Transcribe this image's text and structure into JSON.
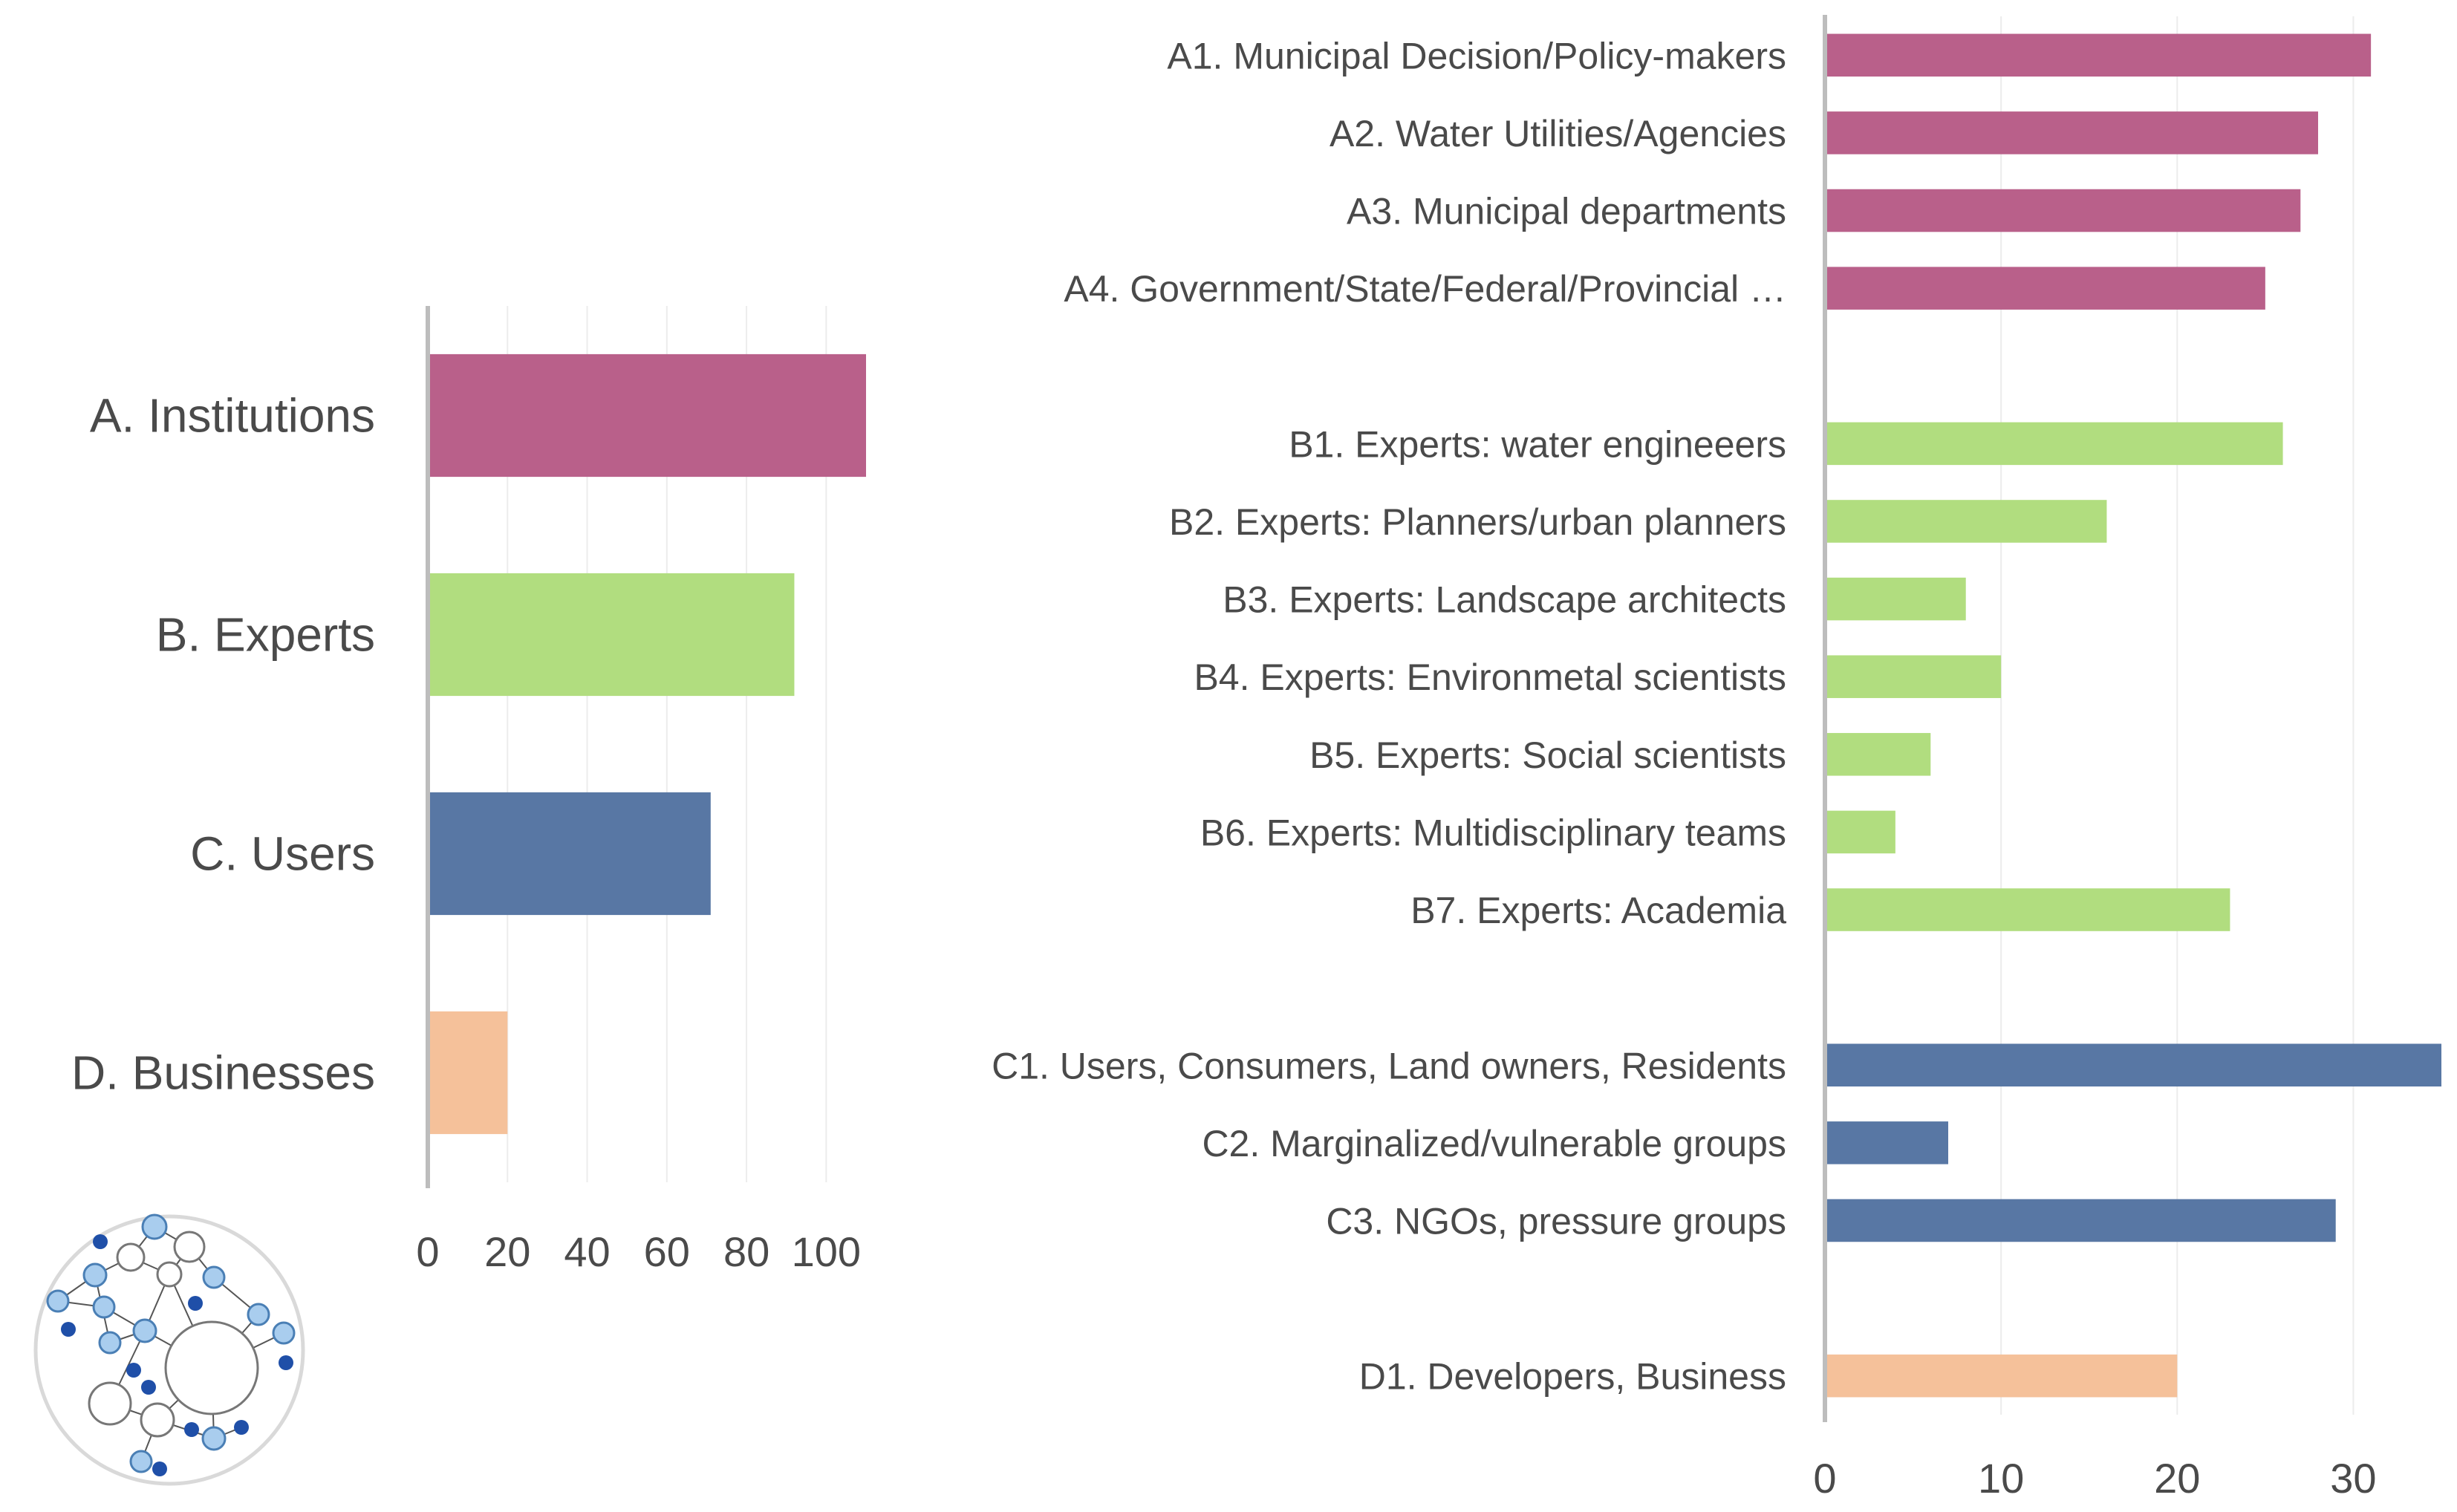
{
  "colors": {
    "A": "#b9608a",
    "B": "#b1dd7f",
    "C": "#5877a4",
    "D": "#f5c19a"
  },
  "chart_data": [
    {
      "type": "bar",
      "orientation": "horizontal",
      "title": "",
      "categories": [
        "A. Institutions",
        "B. Experts",
        "C. Users",
        "D. Businesses"
      ],
      "groups": [
        "A",
        "B",
        "C",
        "D"
      ],
      "values": [
        110,
        92,
        71,
        20
      ],
      "xlim": [
        0,
        110
      ],
      "xticks": [
        "0",
        "20",
        "40",
        "60",
        "80",
        "100"
      ],
      "xtick_values": [
        0,
        20,
        40,
        60,
        80,
        100
      ],
      "grid": true,
      "legend": "none"
    },
    {
      "type": "bar",
      "orientation": "horizontal",
      "title": "",
      "categories": [
        "A1. Municipal  Decision/Policy-makers",
        "A2. Water Utilities/Agencies",
        "A3. Municipal  departments",
        "A4. Government/State/Federal/Provincial …",
        "",
        "B1. Experts: water engineeers",
        "B2. Experts: Planners/urban  planners",
        "B3. Experts: Landscape architects",
        "B4. Experts: Environmetal  scientists",
        "B5. Experts: Social scientists",
        "B6. Experts: Multidisciplinary  teams",
        "B7. Experts: Academia",
        "",
        "C1. Users, Consumers, Land owners, Residents",
        "C2. Marginalized/vulnerable  groups",
        "C3. NGOs, pressure groups",
        "",
        "D1. Developers, Business"
      ],
      "groups": [
        "A",
        "A",
        "A",
        "A",
        "",
        "B",
        "B",
        "B",
        "B",
        "B",
        "B",
        "B",
        "",
        "C",
        "C",
        "C",
        "",
        "D"
      ],
      "values": [
        31,
        28,
        27,
        25,
        null,
        26,
        16,
        8,
        10,
        6,
        4,
        23,
        null,
        35,
        7,
        29,
        null,
        20
      ],
      "xlim": [
        0,
        35
      ],
      "xticks": [
        "0",
        "10",
        "20",
        "30"
      ],
      "xtick_values": [
        0,
        10,
        20,
        30
      ],
      "grid": true,
      "legend": "none"
    }
  ]
}
